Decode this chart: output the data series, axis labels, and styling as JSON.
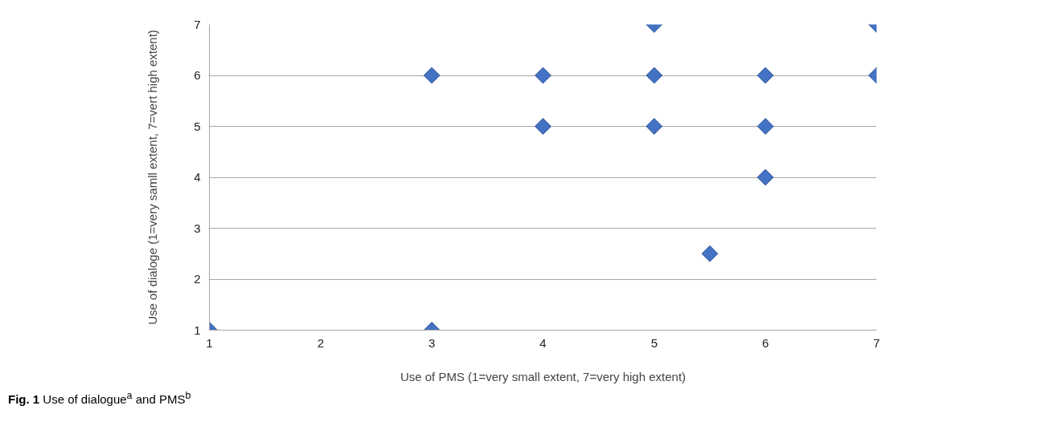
{
  "chart_data": {
    "type": "scatter",
    "xlabel": "Use of PMS (1=very small extent, 7=very high extent)",
    "ylabel": "Use of dialoge (1=very samll extent, 7=vert high extent)",
    "x": [
      1,
      3,
      3,
      4,
      4,
      5,
      5,
      5,
      5.5,
      6,
      6,
      6,
      7,
      7
    ],
    "series": [
      {
        "color": "#4472c4",
        "values": [
          1,
          1,
          6,
          6,
          5,
          7,
          6,
          5,
          2.5,
          6,
          5,
          4,
          7,
          6
        ]
      }
    ],
    "xlim": [
      1,
      7
    ],
    "ylim": [
      1,
      7
    ],
    "xticks": [
      1,
      2,
      3,
      4,
      5,
      6,
      7
    ],
    "yticks": [
      1,
      2,
      3,
      4,
      5,
      6,
      7
    ],
    "grid": "y",
    "marker": "diamond",
    "annotations": [
      "Fig. 1 Use of dialogue$^{a}$ and PMS$^{b}$"
    ]
  }
}
